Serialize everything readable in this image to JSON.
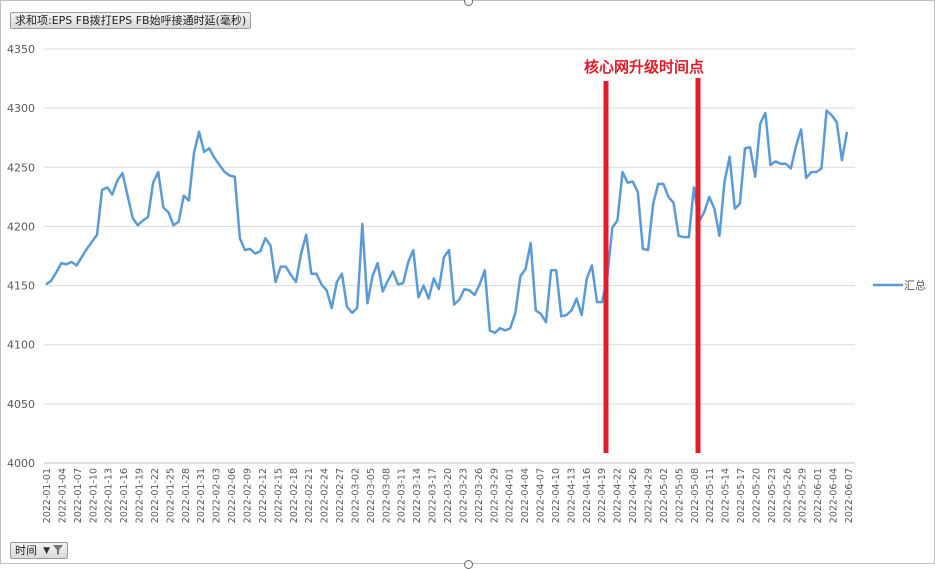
{
  "pivot": {
    "value_field_label": "求和项:EPS FB拨打EPS FB始呼接通时延(毫秒)",
    "axis_field_label": "时间"
  },
  "chart_data": {
    "type": "line",
    "title": "",
    "xlabel": "",
    "ylabel": "",
    "ylim": [
      4000,
      4350
    ],
    "yticks": [
      4000,
      4050,
      4100,
      4150,
      4200,
      4250,
      4300,
      4350
    ],
    "grid": true,
    "legend_position": "right",
    "x_tick_labels": [
      "2022-01-01",
      "2022-01-04",
      "2022-01-07",
      "2022-01-10",
      "2022-01-13",
      "2022-01-16",
      "2022-01-19",
      "2022-01-22",
      "2022-01-25",
      "2022-01-28",
      "2022-01-31",
      "2022-02-03",
      "2022-02-06",
      "2022-02-09",
      "2022-02-12",
      "2022-02-15",
      "2022-02-18",
      "2022-02-21",
      "2022-02-24",
      "2022-02-27",
      "2022-03-02",
      "2022-03-05",
      "2022-03-08",
      "2022-03-11",
      "2022-03-14",
      "2022-03-17",
      "2022-03-20",
      "2022-03-23",
      "2022-03-26",
      "2022-03-29",
      "2022-04-01",
      "2022-04-04",
      "2022-04-07",
      "2022-04-10",
      "2022-04-13",
      "2022-04-16",
      "2022-04-19",
      "2022-04-22",
      "2022-04-26",
      "2022-04-29",
      "2022-05-02",
      "2022-05-05",
      "2022-05-08",
      "2022-05-11",
      "2022-05-14",
      "2022-05-17",
      "2022-05-20",
      "2022-05-23",
      "2022-05-26",
      "2022-05-29",
      "2022-06-01",
      "2022-06-04",
      "2022-06-07"
    ],
    "series": [
      {
        "name": "汇总",
        "color": "#5b9bd5",
        "values": [
          4151,
          4154,
          4161,
          4169,
          4168,
          4170,
          4167,
          4174,
          4181,
          4187,
          4193,
          4231,
          4233,
          4227,
          4239,
          4245,
          4226,
          4207,
          4201,
          4205,
          4208,
          4237,
          4246,
          4216,
          4212,
          4201,
          4204,
          4226,
          4222,
          4262,
          4280,
          4263,
          4266,
          4258,
          4252,
          4246,
          4243,
          4242,
          4190,
          4180,
          4181,
          4177,
          4179,
          4190,
          4184,
          4153,
          4166,
          4166,
          4159,
          4153,
          4177,
          4193,
          4160,
          4160,
          4151,
          4146,
          4131,
          4153,
          4160,
          4132,
          4127,
          4131,
          4202,
          4135,
          4158,
          4169,
          4145,
          4154,
          4162,
          4151,
          4152,
          4170,
          4180,
          4140,
          4150,
          4139,
          4156,
          4147,
          4174,
          4180,
          4134,
          4138,
          4147,
          4146,
          4142,
          4151,
          4163,
          4112,
          4110,
          4114,
          4112,
          4114,
          4127,
          4158,
          4164,
          4186,
          4129,
          4126,
          4119,
          4163,
          4163,
          4124,
          4125,
          4129,
          4139,
          4125,
          4156,
          4167,
          4136,
          4136,
          4157,
          4199,
          4205,
          4246,
          4237,
          4238,
          4229,
          4181,
          4180,
          4219,
          4236,
          4236,
          4225,
          4220,
          4192,
          4191,
          4191,
          4233,
          4204,
          4212,
          4225,
          4215,
          4192,
          4238,
          4259,
          4215,
          4219,
          4266,
          4267,
          4242,
          4287,
          4296,
          4252,
          4255,
          4253,
          4253,
          4249,
          4268,
          4282,
          4241,
          4246,
          4246,
          4249,
          4298,
          4294,
          4288,
          4256,
          4280
        ]
      }
    ],
    "annotations": [
      {
        "text": "核心网升级时间点",
        "color": "#e01e2b"
      }
    ]
  }
}
